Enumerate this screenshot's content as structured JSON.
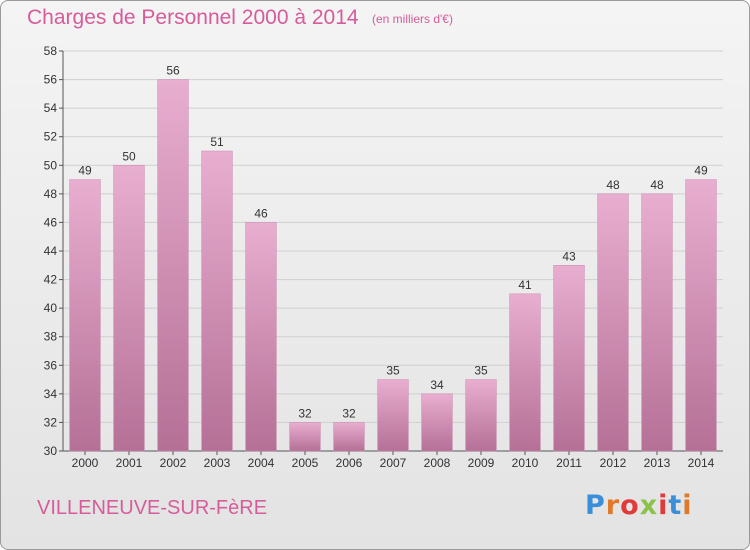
{
  "header": {
    "title": "Charges de Personnel 2000 à 2014",
    "subtitle": "(en milliers d'€)"
  },
  "footer": {
    "place": "VILLENEUVE-SUR-FèRE",
    "logo": "Proxiti"
  },
  "colors": {
    "title": "#d65c9a",
    "bar_top": "#e8aed0",
    "bar_bottom": "#b57096",
    "grid": "#cfcfcf"
  },
  "logo_letter_colors": [
    "#3a8fd8",
    "#e07a2a",
    "#e03a3a",
    "#8bc34a",
    "#e03a3a",
    "#3a8fd8",
    "#e07a2a"
  ],
  "chart_data": {
    "type": "bar",
    "title": "Charges de Personnel 2000 à 2014",
    "subtitle": "(en milliers d'€)",
    "categories": [
      "2000",
      "2001",
      "2002",
      "2003",
      "2004",
      "2005",
      "2006",
      "2007",
      "2008",
      "2009",
      "2010",
      "2011",
      "2012",
      "2013",
      "2014"
    ],
    "values": [
      49,
      50,
      56,
      51,
      46,
      32,
      32,
      35,
      34,
      35,
      41,
      43,
      48,
      48,
      49
    ],
    "ylim": [
      30,
      58
    ],
    "yticks": [
      30,
      32,
      34,
      36,
      38,
      40,
      42,
      44,
      46,
      48,
      50,
      52,
      54,
      56,
      58
    ],
    "grid": true,
    "data_labels": true
  }
}
